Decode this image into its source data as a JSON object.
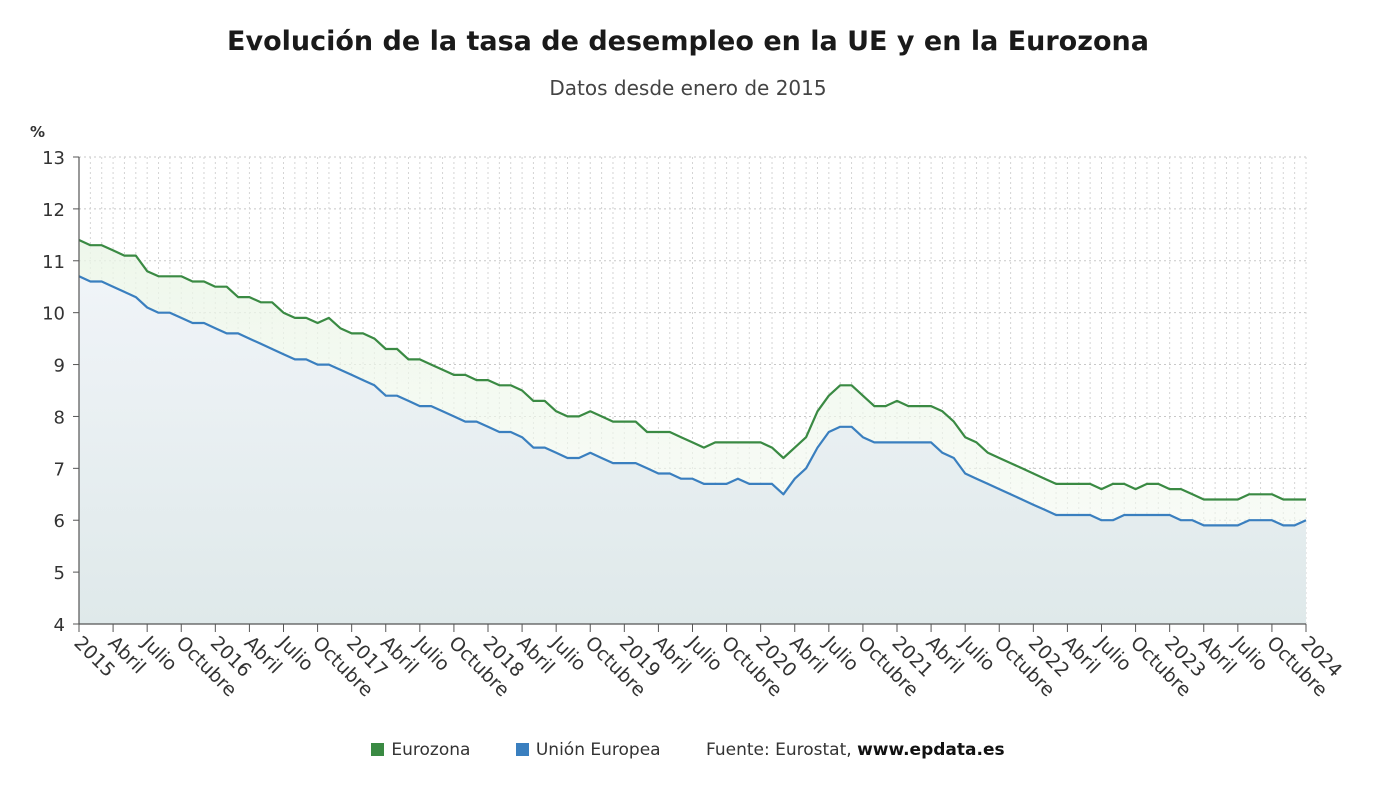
{
  "chart_data": {
    "type": "line",
    "title": "Evolución de la tasa de desempleo en la UE y en la Eurozona",
    "subtitle": "Datos desde enero de 2015",
    "ylabel": "%",
    "ylim": [
      4,
      13
    ],
    "yticks": [
      "4",
      "5",
      "6",
      "7",
      "8",
      "9",
      "10",
      "11",
      "12",
      "13"
    ],
    "grid": true,
    "legend_position": "bottom",
    "x_start": "2015-01",
    "x_end": "2024-01",
    "x_tick_labels": [
      "2015",
      "Abril",
      "Julio",
      "Octubre",
      "2016",
      "Abril",
      "Julio",
      "Octubre",
      "2017",
      "Abril",
      "Julio",
      "Octubre",
      "2018",
      "Abril",
      "Julio",
      "Octubre",
      "2019",
      "Abril",
      "Julio",
      "Octubre",
      "2020",
      "Abril",
      "Julio",
      "Octubre",
      "2021",
      "Abril",
      "Julio",
      "Octubre",
      "2022",
      "Abril",
      "Julio",
      "Octubre",
      "2023",
      "Abril",
      "Julio",
      "Octubre",
      "2024"
    ],
    "series": [
      {
        "name": "Eurozona",
        "color": "#3a8a43",
        "values": [
          11.4,
          11.3,
          11.3,
          11.2,
          11.1,
          11.1,
          10.8,
          10.7,
          10.7,
          10.7,
          10.6,
          10.6,
          10.5,
          10.5,
          10.3,
          10.3,
          10.2,
          10.2,
          10.0,
          9.9,
          9.9,
          9.8,
          9.9,
          9.7,
          9.6,
          9.6,
          9.5,
          9.3,
          9.3,
          9.1,
          9.1,
          9.0,
          8.9,
          8.8,
          8.8,
          8.7,
          8.7,
          8.6,
          8.6,
          8.5,
          8.3,
          8.3,
          8.1,
          8.0,
          8.0,
          8.1,
          8.0,
          7.9,
          7.9,
          7.9,
          7.7,
          7.7,
          7.7,
          7.6,
          7.5,
          7.4,
          7.5,
          7.5,
          7.5,
          7.5,
          7.5,
          7.4,
          7.2,
          7.4,
          7.6,
          8.1,
          8.4,
          8.6,
          8.6,
          8.4,
          8.2,
          8.2,
          8.3,
          8.2,
          8.2,
          8.2,
          8.1,
          7.9,
          7.6,
          7.5,
          7.3,
          7.2,
          7.1,
          7.0,
          6.9,
          6.8,
          6.7,
          6.7,
          6.7,
          6.7,
          6.6,
          6.7,
          6.7,
          6.6,
          6.7,
          6.7,
          6.6,
          6.6,
          6.5,
          6.4,
          6.4,
          6.4,
          6.4,
          6.5,
          6.5,
          6.5,
          6.4,
          6.4,
          6.4
        ]
      },
      {
        "name": "Unión Europea",
        "color": "#3a7fbf",
        "values": [
          10.7,
          10.6,
          10.6,
          10.5,
          10.4,
          10.3,
          10.1,
          10.0,
          10.0,
          9.9,
          9.8,
          9.8,
          9.7,
          9.6,
          9.6,
          9.5,
          9.4,
          9.3,
          9.2,
          9.1,
          9.1,
          9.0,
          9.0,
          8.9,
          8.8,
          8.7,
          8.6,
          8.4,
          8.4,
          8.3,
          8.2,
          8.2,
          8.1,
          8.0,
          7.9,
          7.9,
          7.8,
          7.7,
          7.7,
          7.6,
          7.4,
          7.4,
          7.3,
          7.2,
          7.2,
          7.3,
          7.2,
          7.1,
          7.1,
          7.1,
          7.0,
          6.9,
          6.9,
          6.8,
          6.8,
          6.7,
          6.7,
          6.7,
          6.8,
          6.7,
          6.7,
          6.7,
          6.5,
          6.8,
          7.0,
          7.4,
          7.7,
          7.8,
          7.8,
          7.6,
          7.5,
          7.5,
          7.5,
          7.5,
          7.5,
          7.5,
          7.3,
          7.2,
          6.9,
          6.8,
          6.7,
          6.6,
          6.5,
          6.4,
          6.3,
          6.2,
          6.1,
          6.1,
          6.1,
          6.1,
          6.0,
          6.0,
          6.1,
          6.1,
          6.1,
          6.1,
          6.1,
          6.0,
          6.0,
          5.9,
          5.9,
          5.9,
          5.9,
          6.0,
          6.0,
          6.0,
          5.9,
          5.9,
          6.0
        ]
      }
    ]
  },
  "legend": {
    "items": [
      {
        "label": "Eurozona",
        "color": "#3a8a43"
      },
      {
        "label": "Unión Europea",
        "color": "#3a7fbf"
      }
    ],
    "source_prefix": "Fuente: Eurostat, ",
    "source_site": "www.epdata.es"
  }
}
